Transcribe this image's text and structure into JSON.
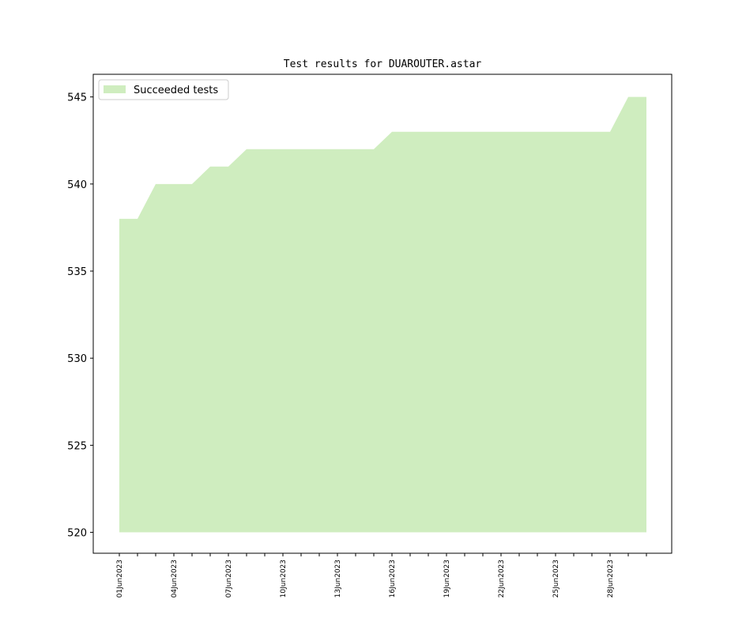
{
  "chart_data": {
    "type": "area",
    "title": "Test results for DUAROUTER.astar",
    "x": [
      "01Jun2023",
      "02Jun2023",
      "03Jun2023",
      "04Jun2023",
      "05Jun2023",
      "06Jun2023",
      "07Jun2023",
      "08Jun2023",
      "09Jun2023",
      "10Jun2023",
      "11Jun2023",
      "12Jun2023",
      "13Jun2023",
      "14Jun2023",
      "15Jun2023",
      "16Jun2023",
      "17Jun2023",
      "18Jun2023",
      "19Jun2023",
      "20Jun2023",
      "21Jun2023",
      "22Jun2023",
      "23Jun2023",
      "24Jun2023",
      "25Jun2023",
      "26Jun2023",
      "27Jun2023",
      "28Jun2023",
      "29Jun2023",
      "30Jun2023"
    ],
    "xticks": [
      "01Jun2023",
      "04Jun2023",
      "07Jun2023",
      "10Jun2023",
      "13Jun2023",
      "16Jun2023",
      "19Jun2023",
      "22Jun2023",
      "25Jun2023",
      "28Jun2023"
    ],
    "series": [
      {
        "name": "Succeeded tests",
        "color": "#cfedbf",
        "values": [
          538,
          538,
          540,
          540,
          540,
          541,
          541,
          542,
          542,
          542,
          542,
          542,
          542,
          542,
          542,
          543,
          543,
          543,
          543,
          543,
          543,
          543,
          543,
          543,
          543,
          543,
          543,
          543,
          545,
          545
        ]
      }
    ],
    "baseline": 520,
    "ylim": [
      518.8,
      546.3
    ],
    "yticks": [
      520,
      525,
      530,
      535,
      540,
      545
    ],
    "legend": "upper left"
  }
}
